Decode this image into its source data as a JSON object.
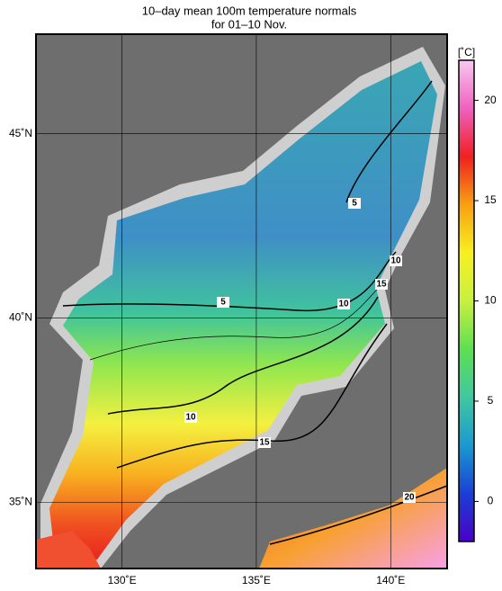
{
  "title": "10–day mean 100m temperature normals",
  "subtitle": "for 01–10 Nov.",
  "lonlim": [
    126.8,
    142.1
  ],
  "latlim": [
    33.2,
    47.7
  ],
  "lonticks": [
    {
      "value": 130,
      "label": "130˚E"
    },
    {
      "value": 135,
      "label": "135˚E"
    },
    {
      "value": 140,
      "label": "140˚E"
    }
  ],
  "latticks": [
    {
      "value": 45,
      "label": "45˚N"
    },
    {
      "value": 40,
      "label": "40˚N"
    },
    {
      "value": 35,
      "label": "35˚N"
    }
  ],
  "colorbar": {
    "unit": "[˚C]",
    "range": [
      -2,
      22
    ],
    "ticks": [
      20,
      15,
      10,
      5,
      0
    ],
    "colors": [
      "#4b00c8",
      "#1a3fd6",
      "#1a9ad0",
      "#40c8a0",
      "#5de050",
      "#c8f040",
      "#f8f020",
      "#f8a010",
      "#f02020",
      "#f060c0",
      "#f8c8f0"
    ]
  },
  "contour_labels": [
    5,
    5,
    10,
    10,
    15,
    15,
    10,
    20
  ]
}
